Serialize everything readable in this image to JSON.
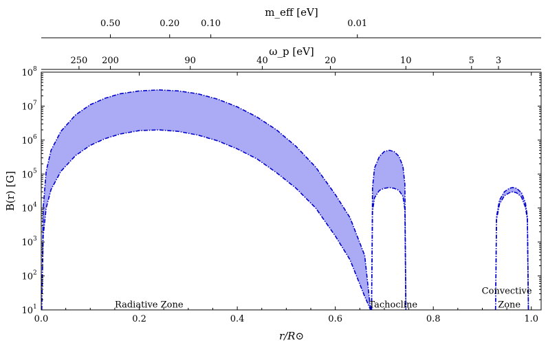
{
  "chart_data": {
    "type": "area",
    "xlabel": "r/R⊙",
    "ylabel": "B(r) [G]",
    "xlim": [
      0.0,
      1.02
    ],
    "ylim": [
      10,
      100000000
    ],
    "yscale": "log",
    "grid": false,
    "x_ticks": [
      {
        "value": 0.0,
        "label": "0.0"
      },
      {
        "value": 0.2,
        "label": "0.2"
      },
      {
        "value": 0.4,
        "label": "0.4"
      },
      {
        "value": 0.6,
        "label": "0.6"
      },
      {
        "value": 0.8,
        "label": "0.8"
      },
      {
        "value": 1.0,
        "label": "1.0"
      }
    ],
    "y_ticks": [
      {
        "exp": 1,
        "label": "10"
      },
      {
        "exp": 2,
        "label": "10"
      },
      {
        "exp": 3,
        "label": "10"
      },
      {
        "exp": 4,
        "label": "10"
      },
      {
        "exp": 5,
        "label": "10"
      },
      {
        "exp": 6,
        "label": "10"
      },
      {
        "exp": 7,
        "label": "10"
      },
      {
        "exp": 8,
        "label": "10"
      }
    ],
    "secondary_axis_1": {
      "label": "ω_p [eV]",
      "ticks": [
        {
          "r": 0.077,
          "label": "250"
        },
        {
          "r": 0.141,
          "label": "200"
        },
        {
          "r": 0.304,
          "label": "90"
        },
        {
          "r": 0.451,
          "label": "40"
        },
        {
          "r": 0.59,
          "label": "20"
        },
        {
          "r": 0.744,
          "label": "10"
        },
        {
          "r": 0.878,
          "label": "5"
        },
        {
          "r": 0.933,
          "label": "3"
        }
      ]
    },
    "secondary_axis_2": {
      "label": "m_eff [eV]",
      "ticks": [
        {
          "r": 0.141,
          "label": "0.50"
        },
        {
          "r": 0.262,
          "label": "0.20"
        },
        {
          "r": 0.346,
          "label": "0.10"
        },
        {
          "r": 0.645,
          "label": "0.01"
        }
      ]
    },
    "annotations": [
      {
        "text": "Radiative Zone",
        "x": 0.22,
        "y": 15
      },
      {
        "text": "Tachocline",
        "x": 0.718,
        "y": 15
      },
      {
        "text": "Convective",
        "x": 0.95,
        "y": 38
      },
      {
        "text": "Zone",
        "x": 0.955,
        "y": 15
      }
    ],
    "fill_color": "#aaaaf5",
    "line_color": "#0000cc",
    "series": [
      {
        "zone": "radiative",
        "x": [
          0.001,
          0.004,
          0.01,
          0.02,
          0.04,
          0.07,
          0.1,
          0.13,
          0.16,
          0.2,
          0.24,
          0.28,
          0.32,
          0.36,
          0.4,
          0.44,
          0.48,
          0.52,
          0.56,
          0.6,
          0.63,
          0.66,
          0.672
        ],
        "upper": [
          10,
          10000,
          120000,
          500000,
          1800000,
          5500000,
          11000000,
          17000000,
          23000000,
          28000000,
          30000000,
          28000000,
          23000000,
          16000000,
          9500000,
          4800000,
          2000000,
          650000,
          160000,
          25000,
          5200,
          400,
          10
        ],
        "lower": [
          10,
          1500,
          10000,
          35000,
          120000,
          350000,
          700000,
          1100000,
          1500000,
          1900000,
          2000000,
          1800000,
          1400000,
          950000,
          550000,
          280000,
          110000,
          38000,
          10000,
          1500,
          300,
          25,
          10
        ]
      },
      {
        "zone": "tachocline",
        "x": [
          0.674,
          0.676,
          0.68,
          0.69,
          0.7,
          0.71,
          0.72,
          0.73,
          0.738,
          0.742,
          0.744
        ],
        "upper": [
          10,
          40000,
          150000,
          330000,
          460000,
          500000,
          460000,
          330000,
          170000,
          50000,
          10
        ],
        "lower": [
          10,
          8000,
          20000,
          33000,
          38000,
          40000,
          38000,
          33000,
          22000,
          9000,
          10
        ]
      },
      {
        "zone": "convective",
        "x": [
          0.927,
          0.929,
          0.935,
          0.945,
          0.955,
          0.962,
          0.97,
          0.98,
          0.988,
          0.992,
          0.994
        ],
        "upper": [
          10,
          5500,
          17000,
          30000,
          38000,
          40000,
          38000,
          28000,
          14000,
          5500,
          10
        ],
        "lower": [
          10,
          4500,
          13000,
          23000,
          28000,
          30000,
          28000,
          21000,
          10500,
          4500,
          10
        ]
      }
    ]
  }
}
